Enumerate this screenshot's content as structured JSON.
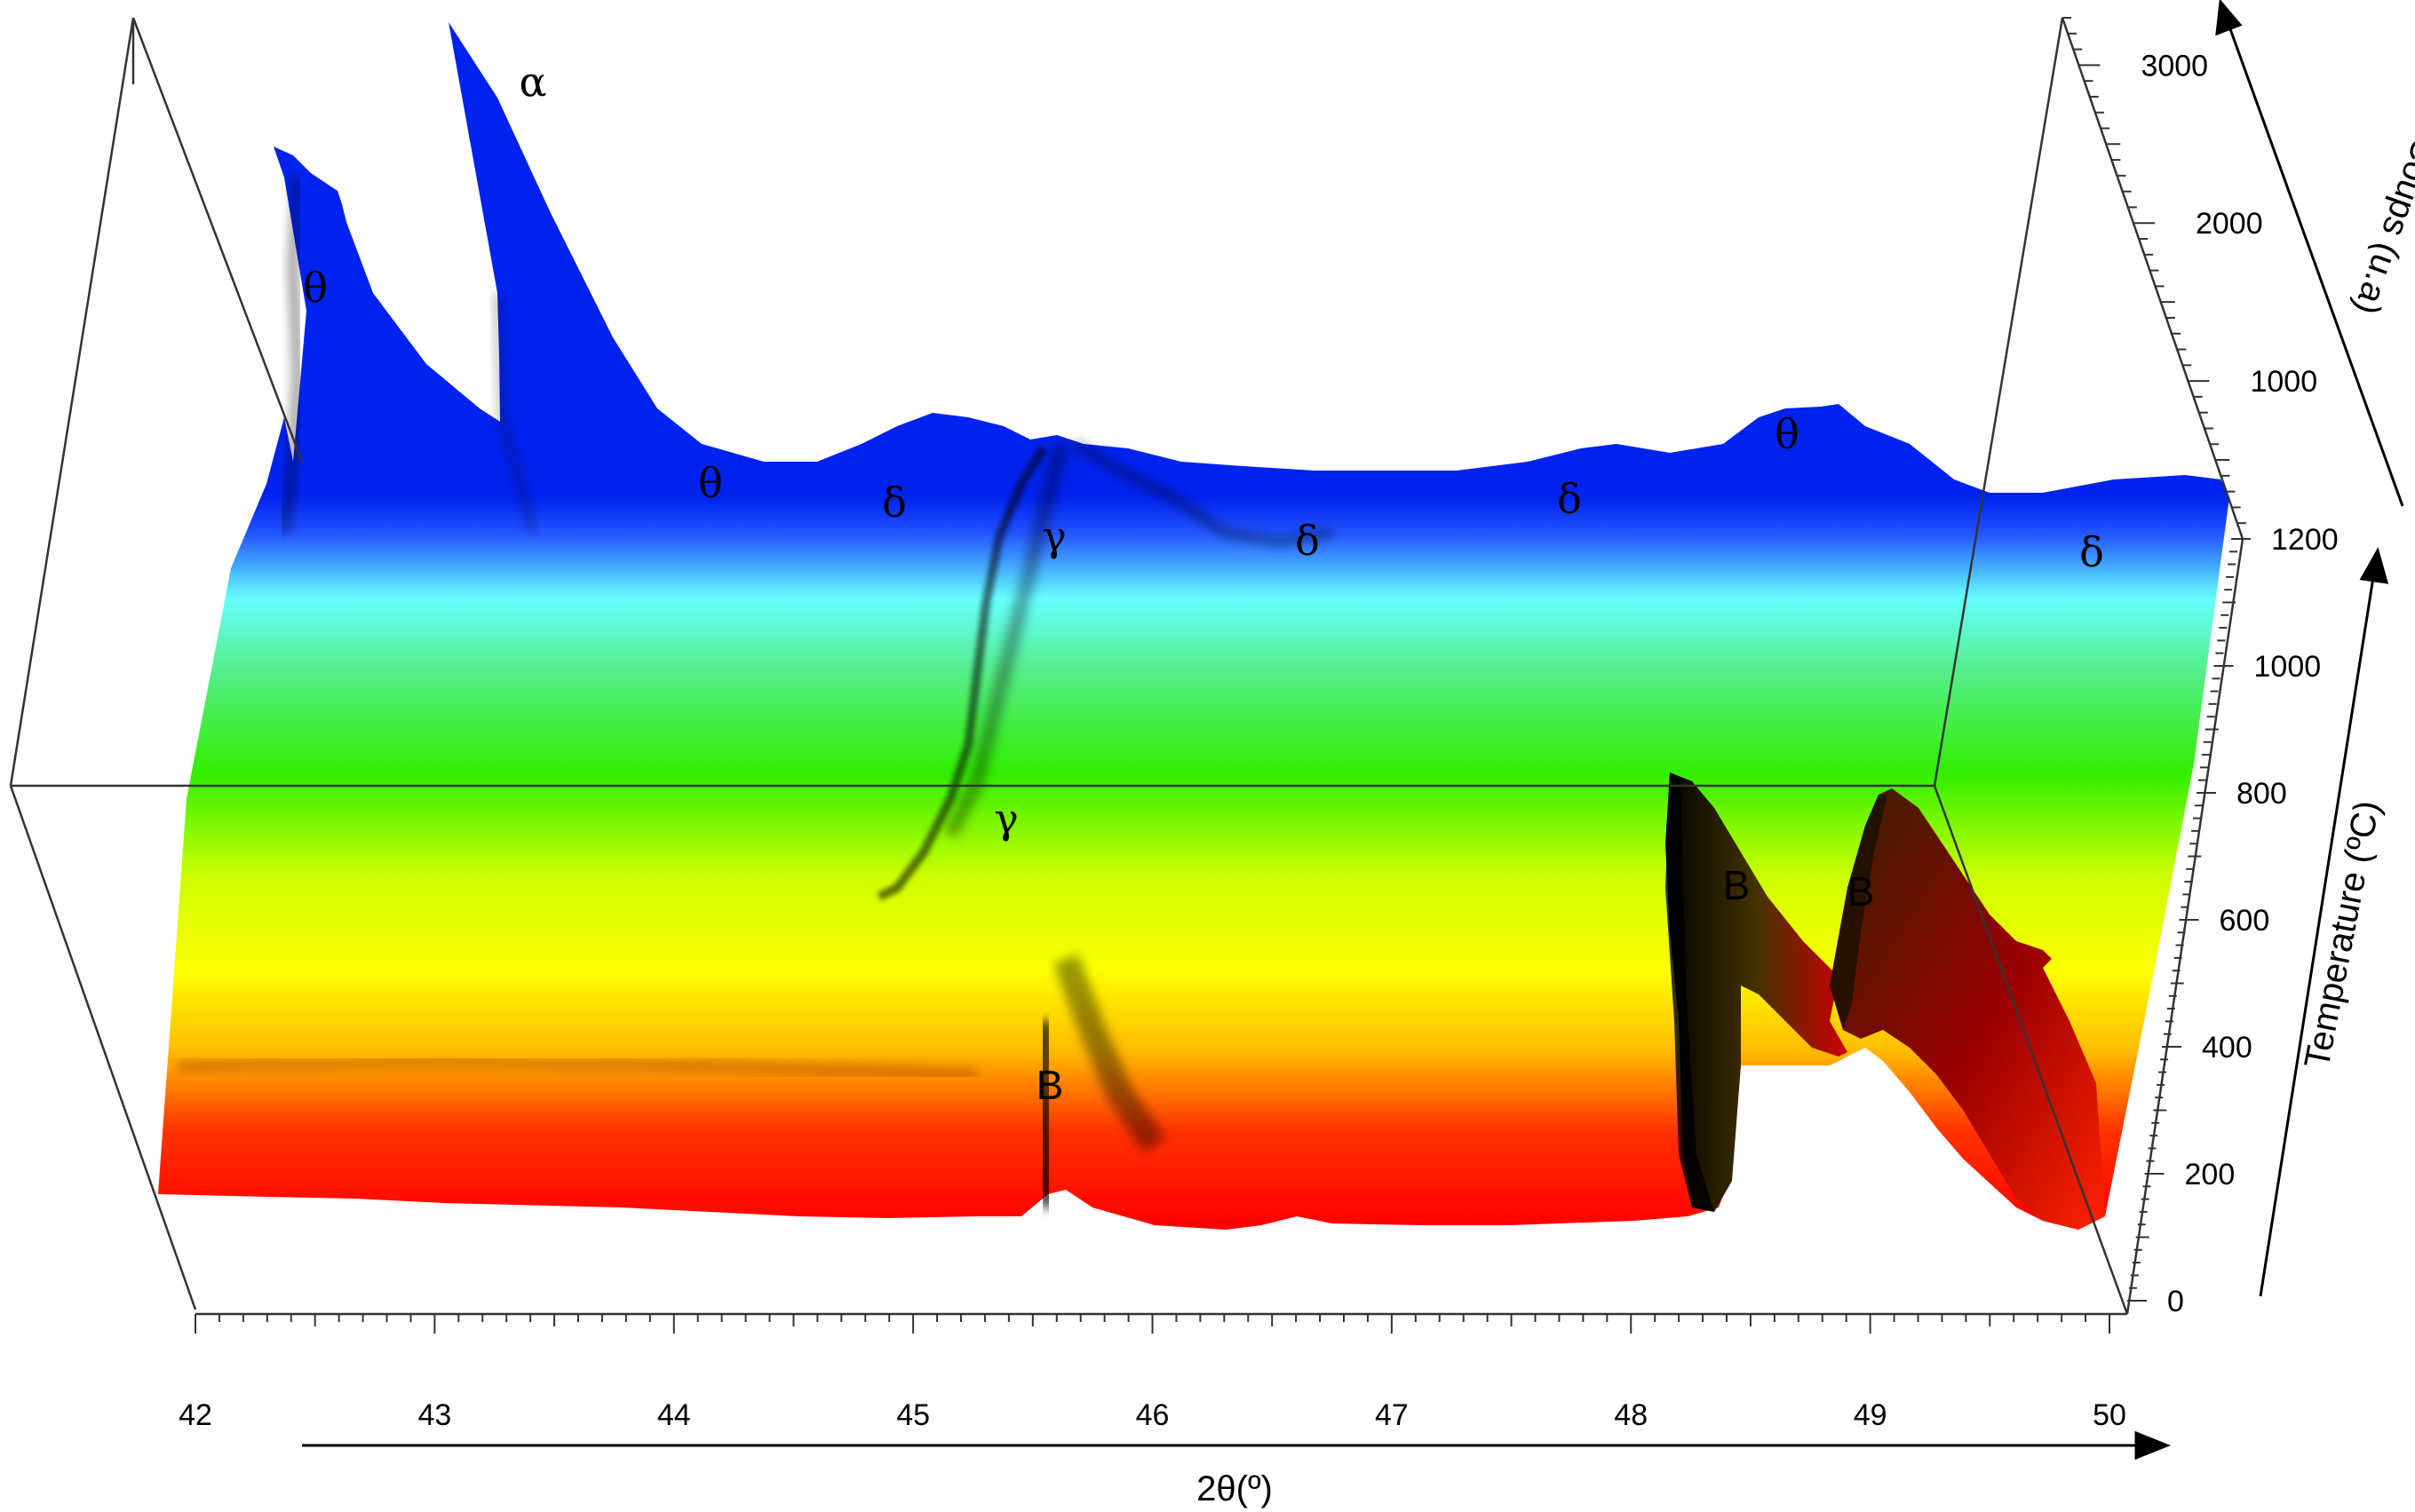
{
  "chart_data": {
    "type": "surface-3d",
    "xlabel": "2θ(º)",
    "ylabel": "Temperature (ºC)",
    "zlabel": "Coups (u.a)",
    "x_ticks": [
      "42",
      "43",
      "44",
      "45",
      "46",
      "47",
      "48",
      "49",
      "50"
    ],
    "y_ticks": [
      "0",
      "200",
      "400",
      "600",
      "800",
      "1000",
      "1200"
    ],
    "z_ticks": [
      "1000",
      "2000",
      "3000"
    ],
    "xlim": [
      42,
      50
    ],
    "ylim": [
      0,
      1200
    ],
    "zlim": [
      0,
      3300
    ],
    "colormap": [
      "#ff0000",
      "#ffff00",
      "#33ee00",
      "#66ffff",
      "#0022ee"
    ],
    "phase_labels": [
      {
        "text": "α",
        "two_theta": 43.4,
        "temperature": 1200
      },
      {
        "text": "θ",
        "two_theta": 42.5,
        "temperature": 1200
      },
      {
        "text": "θ",
        "two_theta": 44.1,
        "temperature": 1200
      },
      {
        "text": "δ",
        "two_theta": 44.9,
        "temperature": 1200
      },
      {
        "text": "γ",
        "two_theta": 45.6,
        "temperature": 1150
      },
      {
        "text": "δ",
        "two_theta": 46.6,
        "temperature": 1150
      },
      {
        "text": "δ",
        "two_theta": 47.7,
        "temperature": 1200
      },
      {
        "text": "θ",
        "two_theta": 48.6,
        "temperature": 1200
      },
      {
        "text": "δ",
        "two_theta": 49.9,
        "temperature": 1150
      },
      {
        "text": "γ",
        "two_theta": 45.4,
        "temperature": 750
      },
      {
        "text": "B",
        "two_theta": 45.6,
        "temperature": 300
      },
      {
        "text": "B",
        "two_theta": 48.4,
        "temperature": 650
      },
      {
        "text": "B",
        "two_theta": 48.9,
        "temperature": 650
      }
    ],
    "peaks": [
      {
        "phase": "θ",
        "two_theta": 42.35,
        "temperature": 1200,
        "counts": 2600
      },
      {
        "phase": "θ",
        "two_theta": 42.6,
        "temperature": 1200,
        "counts": 2200
      },
      {
        "phase": "α",
        "two_theta": 43.3,
        "temperature": 1200,
        "counts": 3300
      },
      {
        "phase": "θ",
        "two_theta": 48.6,
        "temperature": 1200,
        "counts": 300
      },
      {
        "phase": "γ",
        "two_theta": 45.6,
        "temperature": 1100,
        "counts": 250
      },
      {
        "phase": "B",
        "two_theta": 45.55,
        "temperature": 300,
        "counts": 500
      },
      {
        "phase": "B",
        "two_theta": 48.25,
        "temperature": 700,
        "counts": 1100
      },
      {
        "phase": "B",
        "two_theta": 49.0,
        "temperature": 700,
        "counts": 1000
      }
    ]
  }
}
